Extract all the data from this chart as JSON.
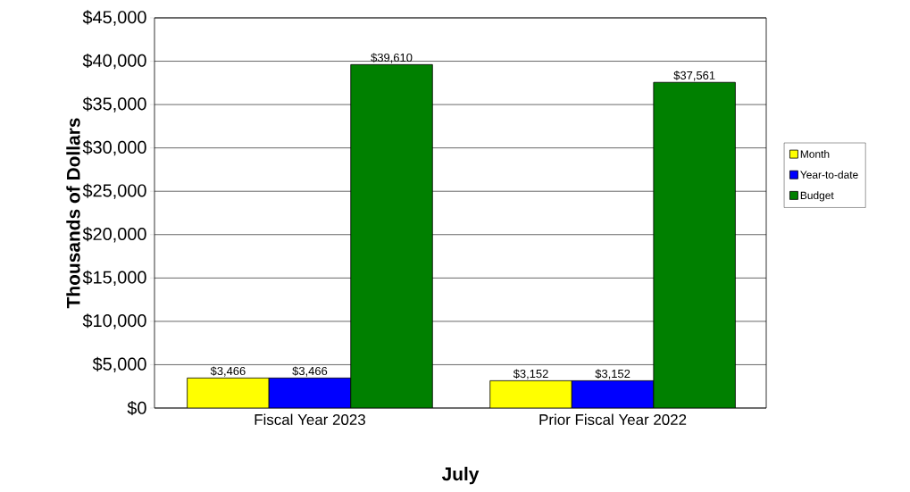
{
  "chart_data": {
    "type": "bar",
    "xlabel": "July",
    "ylabel": "Thousands of Dollars",
    "categories": [
      "Fiscal Year 2023",
      "Prior Fiscal Year 2022"
    ],
    "series": [
      {
        "name": "Month",
        "color": "#ffff00",
        "values": [
          3466,
          3152
        ],
        "value_labels": [
          "$3,466",
          "$3,152"
        ]
      },
      {
        "name": "Year-to-date",
        "color": "#0000ff",
        "values": [
          3466,
          3152
        ],
        "value_labels": [
          "$3,466",
          "$3,152"
        ]
      },
      {
        "name": "Budget",
        "color": "#008000",
        "values": [
          39610,
          37561
        ],
        "value_labels": [
          "$39,610",
          "$37,561"
        ]
      }
    ],
    "ylim": [
      0,
      45000
    ],
    "yticks": [
      {
        "value": 0,
        "label": "$0"
      },
      {
        "value": 5000,
        "label": "$5,000"
      },
      {
        "value": 10000,
        "label": "$10,000"
      },
      {
        "value": 15000,
        "label": "$15,000"
      },
      {
        "value": 20000,
        "label": "$20,000"
      },
      {
        "value": 25000,
        "label": "$25,000"
      },
      {
        "value": 30000,
        "label": "$30,000"
      },
      {
        "value": 35000,
        "label": "$35,000"
      },
      {
        "value": 40000,
        "label": "$40,000"
      },
      {
        "value": 45000,
        "label": "$45,000"
      }
    ],
    "grid": "y",
    "legend": "right"
  }
}
